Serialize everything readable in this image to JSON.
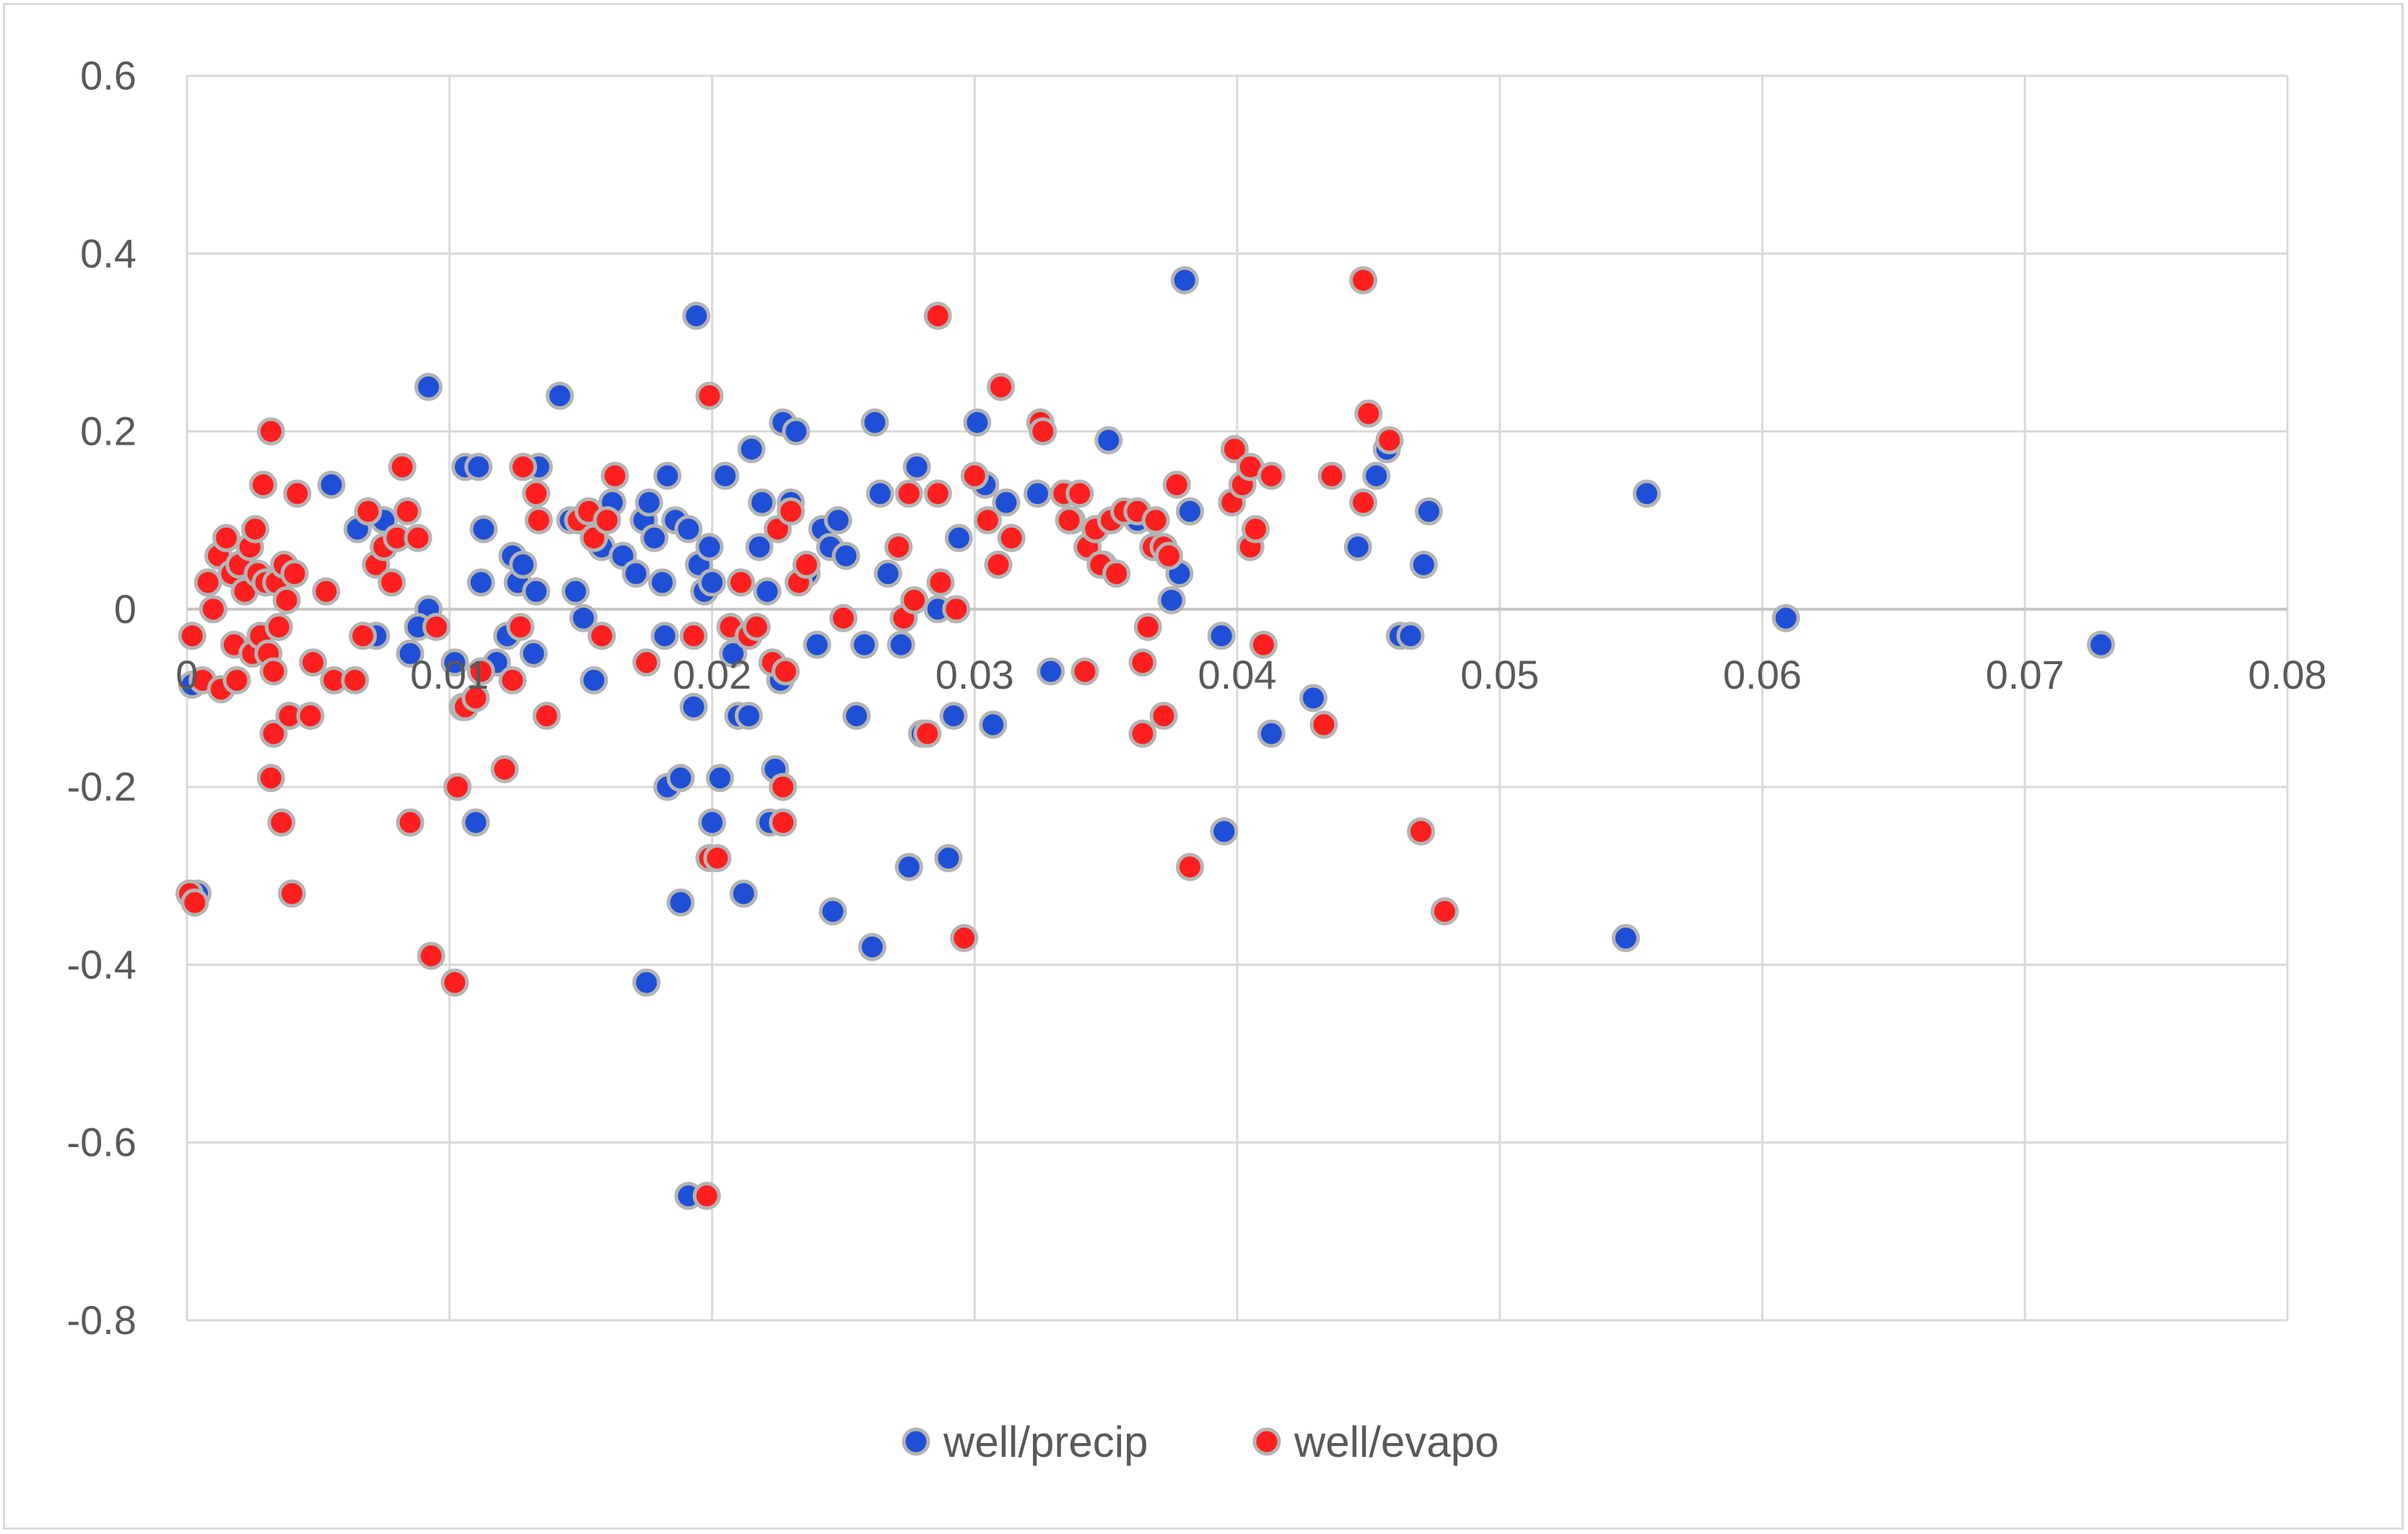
{
  "chart_data": {
    "type": "scatter",
    "title": "",
    "xlabel": "",
    "ylabel": "",
    "xlim": [
      0,
      0.08
    ],
    "ylim": [
      -0.8,
      0.6
    ],
    "x_ticks": [
      0,
      0.01,
      0.02,
      0.03,
      0.04,
      0.05,
      0.06,
      0.07,
      0.08
    ],
    "x_tick_labels": [
      "0",
      "0.01",
      "0.02",
      "0.03",
      "0.04",
      "0.05",
      "0.06",
      "0.07",
      "0.08"
    ],
    "y_ticks": [
      0.6,
      0.4,
      0.2,
      0,
      -0.2,
      -0.4,
      -0.6,
      -0.8
    ],
    "y_tick_labels": [
      "0.6",
      "0.4",
      "0.2",
      "0",
      "-0.2",
      "-0.4",
      "-0.6",
      "-0.8"
    ],
    "grid": true,
    "legend_position": "bottom",
    "series": [
      {
        "name": "well/precip",
        "color": "#1f4fd6",
        "points": [
          [
            0.0002,
            -0.085
          ],
          [
            0.0004,
            -0.32
          ],
          [
            0.0055,
            0.14
          ],
          [
            0.0065,
            0.09
          ],
          [
            0.0075,
            0.1
          ],
          [
            0.0072,
            -0.03
          ],
          [
            0.0078,
            0.03
          ],
          [
            0.0085,
            -0.05
          ],
          [
            0.0092,
            0.25
          ],
          [
            0.0092,
            0.0
          ],
          [
            0.0088,
            -0.02
          ],
          [
            0.0102,
            -0.06
          ],
          [
            0.0105,
            -0.11
          ],
          [
            0.0106,
            0.16
          ],
          [
            0.0111,
            0.16
          ],
          [
            0.0112,
            0.03
          ],
          [
            0.0113,
            0.09
          ],
          [
            0.011,
            -0.24
          ],
          [
            0.0118,
            -0.06
          ],
          [
            0.0122,
            -0.03
          ],
          [
            0.0124,
            0.06
          ],
          [
            0.0126,
            0.03
          ],
          [
            0.0128,
            0.05
          ],
          [
            0.0132,
            -0.05
          ],
          [
            0.0133,
            0.02
          ],
          [
            0.0134,
            0.16
          ],
          [
            0.0142,
            0.24
          ],
          [
            0.0146,
            0.1
          ],
          [
            0.0148,
            0.02
          ],
          [
            0.0151,
            -0.01
          ],
          [
            0.0155,
            -0.08
          ],
          [
            0.0158,
            0.07
          ],
          [
            0.0162,
            0.12
          ],
          [
            0.0166,
            0.06
          ],
          [
            0.0171,
            0.04
          ],
          [
            0.0174,
            0.1
          ],
          [
            0.0176,
            0.12
          ],
          [
            0.0175,
            -0.42
          ],
          [
            0.0178,
            0.08
          ],
          [
            0.0181,
            0.03
          ],
          [
            0.0182,
            -0.03
          ],
          [
            0.0183,
            0.15
          ],
          [
            0.0183,
            -0.2
          ],
          [
            0.0186,
            0.1
          ],
          [
            0.0188,
            -0.19
          ],
          [
            0.0188,
            -0.33
          ],
          [
            0.0191,
            0.09
          ],
          [
            0.0191,
            -0.66
          ],
          [
            0.0194,
            0.33
          ],
          [
            0.0193,
            -0.11
          ],
          [
            0.0195,
            0.05
          ],
          [
            0.0197,
            0.02
          ],
          [
            0.0199,
            0.07
          ],
          [
            0.02,
            0.03
          ],
          [
            0.02,
            -0.24
          ],
          [
            0.0203,
            -0.19
          ],
          [
            0.0205,
            0.15
          ],
          [
            0.0208,
            -0.05
          ],
          [
            0.021,
            -0.12
          ],
          [
            0.0212,
            -0.32
          ],
          [
            0.0214,
            -0.12
          ],
          [
            0.0215,
            0.18
          ],
          [
            0.0218,
            0.07
          ],
          [
            0.0219,
            0.12
          ],
          [
            0.0221,
            0.02
          ],
          [
            0.0222,
            -0.24
          ],
          [
            0.0224,
            -0.18
          ],
          [
            0.0226,
            -0.08
          ],
          [
            0.0227,
            0.21
          ],
          [
            0.023,
            0.12
          ],
          [
            0.0232,
            0.2
          ],
          [
            0.0236,
            0.04
          ],
          [
            0.024,
            -0.04
          ],
          [
            0.0242,
            0.09
          ],
          [
            0.0245,
            0.07
          ],
          [
            0.0246,
            -0.34
          ],
          [
            0.0248,
            0.1
          ],
          [
            0.0251,
            0.06
          ],
          [
            0.0255,
            -0.12
          ],
          [
            0.0258,
            -0.04
          ],
          [
            0.0261,
            -0.38
          ],
          [
            0.0262,
            0.21
          ],
          [
            0.0264,
            0.13
          ],
          [
            0.0267,
            0.04
          ],
          [
            0.0272,
            -0.04
          ],
          [
            0.0275,
            -0.29
          ],
          [
            0.0278,
            0.16
          ],
          [
            0.028,
            -0.14
          ],
          [
            0.0286,
            0.0
          ],
          [
            0.029,
            -0.28
          ],
          [
            0.0292,
            -0.12
          ],
          [
            0.0294,
            0.08
          ],
          [
            0.0301,
            0.21
          ],
          [
            0.0304,
            0.14
          ],
          [
            0.0307,
            -0.13
          ],
          [
            0.0312,
            0.12
          ],
          [
            0.0324,
            0.13
          ],
          [
            0.0329,
            -0.07
          ],
          [
            0.0337,
            0.1
          ],
          [
            0.0349,
            0.05
          ],
          [
            0.0351,
            0.19
          ],
          [
            0.0362,
            0.1
          ],
          [
            0.0375,
            0.01
          ],
          [
            0.0378,
            0.04
          ],
          [
            0.038,
            0.37
          ],
          [
            0.0382,
            0.11
          ],
          [
            0.0394,
            -0.03
          ],
          [
            0.0395,
            -0.25
          ],
          [
            0.0413,
            -0.14
          ],
          [
            0.0429,
            -0.1
          ],
          [
            0.0446,
            0.07
          ],
          [
            0.0453,
            0.15
          ],
          [
            0.0457,
            0.18
          ],
          [
            0.0462,
            -0.03
          ],
          [
            0.0466,
            -0.03
          ],
          [
            0.0471,
            0.05
          ],
          [
            0.0473,
            0.11
          ],
          [
            0.0548,
            -0.37
          ],
          [
            0.0556,
            0.13
          ],
          [
            0.0609,
            -0.01
          ],
          [
            0.0729,
            -0.04
          ]
        ]
      },
      {
        "name": "well/evapo",
        "color": "#ff1f1f",
        "points": [
          [
            0.0001,
            -0.32
          ],
          [
            0.0003,
            -0.33
          ],
          [
            0.0002,
            -0.03
          ],
          [
            0.0006,
            -0.08
          ],
          [
            0.0008,
            0.03
          ],
          [
            0.001,
            0.0
          ],
          [
            0.0012,
            0.06
          ],
          [
            0.0013,
            -0.09
          ],
          [
            0.0015,
            0.08
          ],
          [
            0.0017,
            0.04
          ],
          [
            0.0018,
            -0.04
          ],
          [
            0.0019,
            -0.08
          ],
          [
            0.002,
            0.05
          ],
          [
            0.0022,
            0.02
          ],
          [
            0.0024,
            0.07
          ],
          [
            0.0025,
            -0.05
          ],
          [
            0.0026,
            0.09
          ],
          [
            0.0027,
            0.04
          ],
          [
            0.0028,
            -0.03
          ],
          [
            0.0029,
            0.14
          ],
          [
            0.003,
            0.03
          ],
          [
            0.0031,
            -0.05
          ],
          [
            0.0032,
            0.2
          ],
          [
            0.0033,
            -0.07
          ],
          [
            0.0033,
            -0.14
          ],
          [
            0.0032,
            -0.19
          ],
          [
            0.0034,
            0.03
          ],
          [
            0.0035,
            -0.02
          ],
          [
            0.0036,
            -0.24
          ],
          [
            0.0037,
            0.05
          ],
          [
            0.0038,
            0.01
          ],
          [
            0.0039,
            -0.12
          ],
          [
            0.004,
            -0.32
          ],
          [
            0.0041,
            0.04
          ],
          [
            0.0042,
            0.13
          ],
          [
            0.0047,
            -0.12
          ],
          [
            0.0048,
            -0.06
          ],
          [
            0.0053,
            0.02
          ],
          [
            0.0056,
            -0.08
          ],
          [
            0.0064,
            -0.08
          ],
          [
            0.0067,
            -0.03
          ],
          [
            0.0069,
            0.11
          ],
          [
            0.0072,
            0.05
          ],
          [
            0.0075,
            0.07
          ],
          [
            0.0078,
            0.03
          ],
          [
            0.008,
            0.08
          ],
          [
            0.0082,
            0.16
          ],
          [
            0.0084,
            0.11
          ],
          [
            0.0085,
            -0.24
          ],
          [
            0.0088,
            0.08
          ],
          [
            0.0093,
            -0.39
          ],
          [
            0.0095,
            -0.02
          ],
          [
            0.0102,
            -0.42
          ],
          [
            0.0103,
            -0.2
          ],
          [
            0.0106,
            -0.11
          ],
          [
            0.011,
            -0.1
          ],
          [
            0.0112,
            -0.07
          ],
          [
            0.0121,
            -0.18
          ],
          [
            0.0124,
            -0.08
          ],
          [
            0.0127,
            -0.02
          ],
          [
            0.0128,
            0.16
          ],
          [
            0.0133,
            0.13
          ],
          [
            0.0134,
            0.1
          ],
          [
            0.0137,
            -0.12
          ],
          [
            0.0149,
            0.1
          ],
          [
            0.0153,
            0.11
          ],
          [
            0.0155,
            0.08
          ],
          [
            0.0158,
            -0.03
          ],
          [
            0.016,
            0.1
          ],
          [
            0.0163,
            0.15
          ],
          [
            0.0175,
            -0.06
          ],
          [
            0.0193,
            -0.03
          ],
          [
            0.0198,
            -0.66
          ],
          [
            0.0199,
            0.24
          ],
          [
            0.0199,
            -0.28
          ],
          [
            0.0202,
            -0.28
          ],
          [
            0.0207,
            -0.02
          ],
          [
            0.0211,
            0.03
          ],
          [
            0.0214,
            -0.03
          ],
          [
            0.0217,
            -0.02
          ],
          [
            0.0223,
            -0.06
          ],
          [
            0.0225,
            0.09
          ],
          [
            0.0227,
            -0.2
          ],
          [
            0.0227,
            -0.24
          ],
          [
            0.0228,
            -0.07
          ],
          [
            0.023,
            0.11
          ],
          [
            0.0233,
            0.03
          ],
          [
            0.0236,
            0.05
          ],
          [
            0.025,
            -0.01
          ],
          [
            0.0271,
            0.07
          ],
          [
            0.0273,
            -0.01
          ],
          [
            0.0275,
            0.13
          ],
          [
            0.0277,
            0.01
          ],
          [
            0.0282,
            -0.14
          ],
          [
            0.0286,
            0.33
          ],
          [
            0.0286,
            0.13
          ],
          [
            0.0287,
            0.03
          ],
          [
            0.0293,
            0.0
          ],
          [
            0.0296,
            -0.37
          ],
          [
            0.03,
            0.15
          ],
          [
            0.0305,
            0.1
          ],
          [
            0.0309,
            0.05
          ],
          [
            0.031,
            0.25
          ],
          [
            0.0314,
            0.08
          ],
          [
            0.0325,
            0.21
          ],
          [
            0.0326,
            0.2
          ],
          [
            0.0334,
            0.13
          ],
          [
            0.0336,
            0.1
          ],
          [
            0.034,
            0.13
          ],
          [
            0.0342,
            -0.07
          ],
          [
            0.0343,
            0.07
          ],
          [
            0.0346,
            0.09
          ],
          [
            0.0348,
            0.05
          ],
          [
            0.0352,
            0.1
          ],
          [
            0.0354,
            0.04
          ],
          [
            0.0357,
            0.11
          ],
          [
            0.0362,
            0.11
          ],
          [
            0.0364,
            -0.14
          ],
          [
            0.0364,
            -0.06
          ],
          [
            0.0366,
            -0.02
          ],
          [
            0.0368,
            0.07
          ],
          [
            0.0369,
            0.1
          ],
          [
            0.0372,
            0.07
          ],
          [
            0.0372,
            -0.12
          ],
          [
            0.0374,
            0.06
          ],
          [
            0.0377,
            0.14
          ],
          [
            0.0382,
            -0.29
          ],
          [
            0.0398,
            0.12
          ],
          [
            0.0399,
            0.18
          ],
          [
            0.0402,
            0.14
          ],
          [
            0.0405,
            0.07
          ],
          [
            0.0405,
            0.16
          ],
          [
            0.0407,
            0.09
          ],
          [
            0.041,
            -0.04
          ],
          [
            0.0413,
            0.15
          ],
          [
            0.0433,
            -0.13
          ],
          [
            0.0436,
            0.15
          ],
          [
            0.0448,
            0.37
          ],
          [
            0.0448,
            0.12
          ],
          [
            0.045,
            0.22
          ],
          [
            0.0458,
            0.19
          ],
          [
            0.047,
            -0.25
          ],
          [
            0.0479,
            -0.34
          ]
        ]
      }
    ]
  }
}
